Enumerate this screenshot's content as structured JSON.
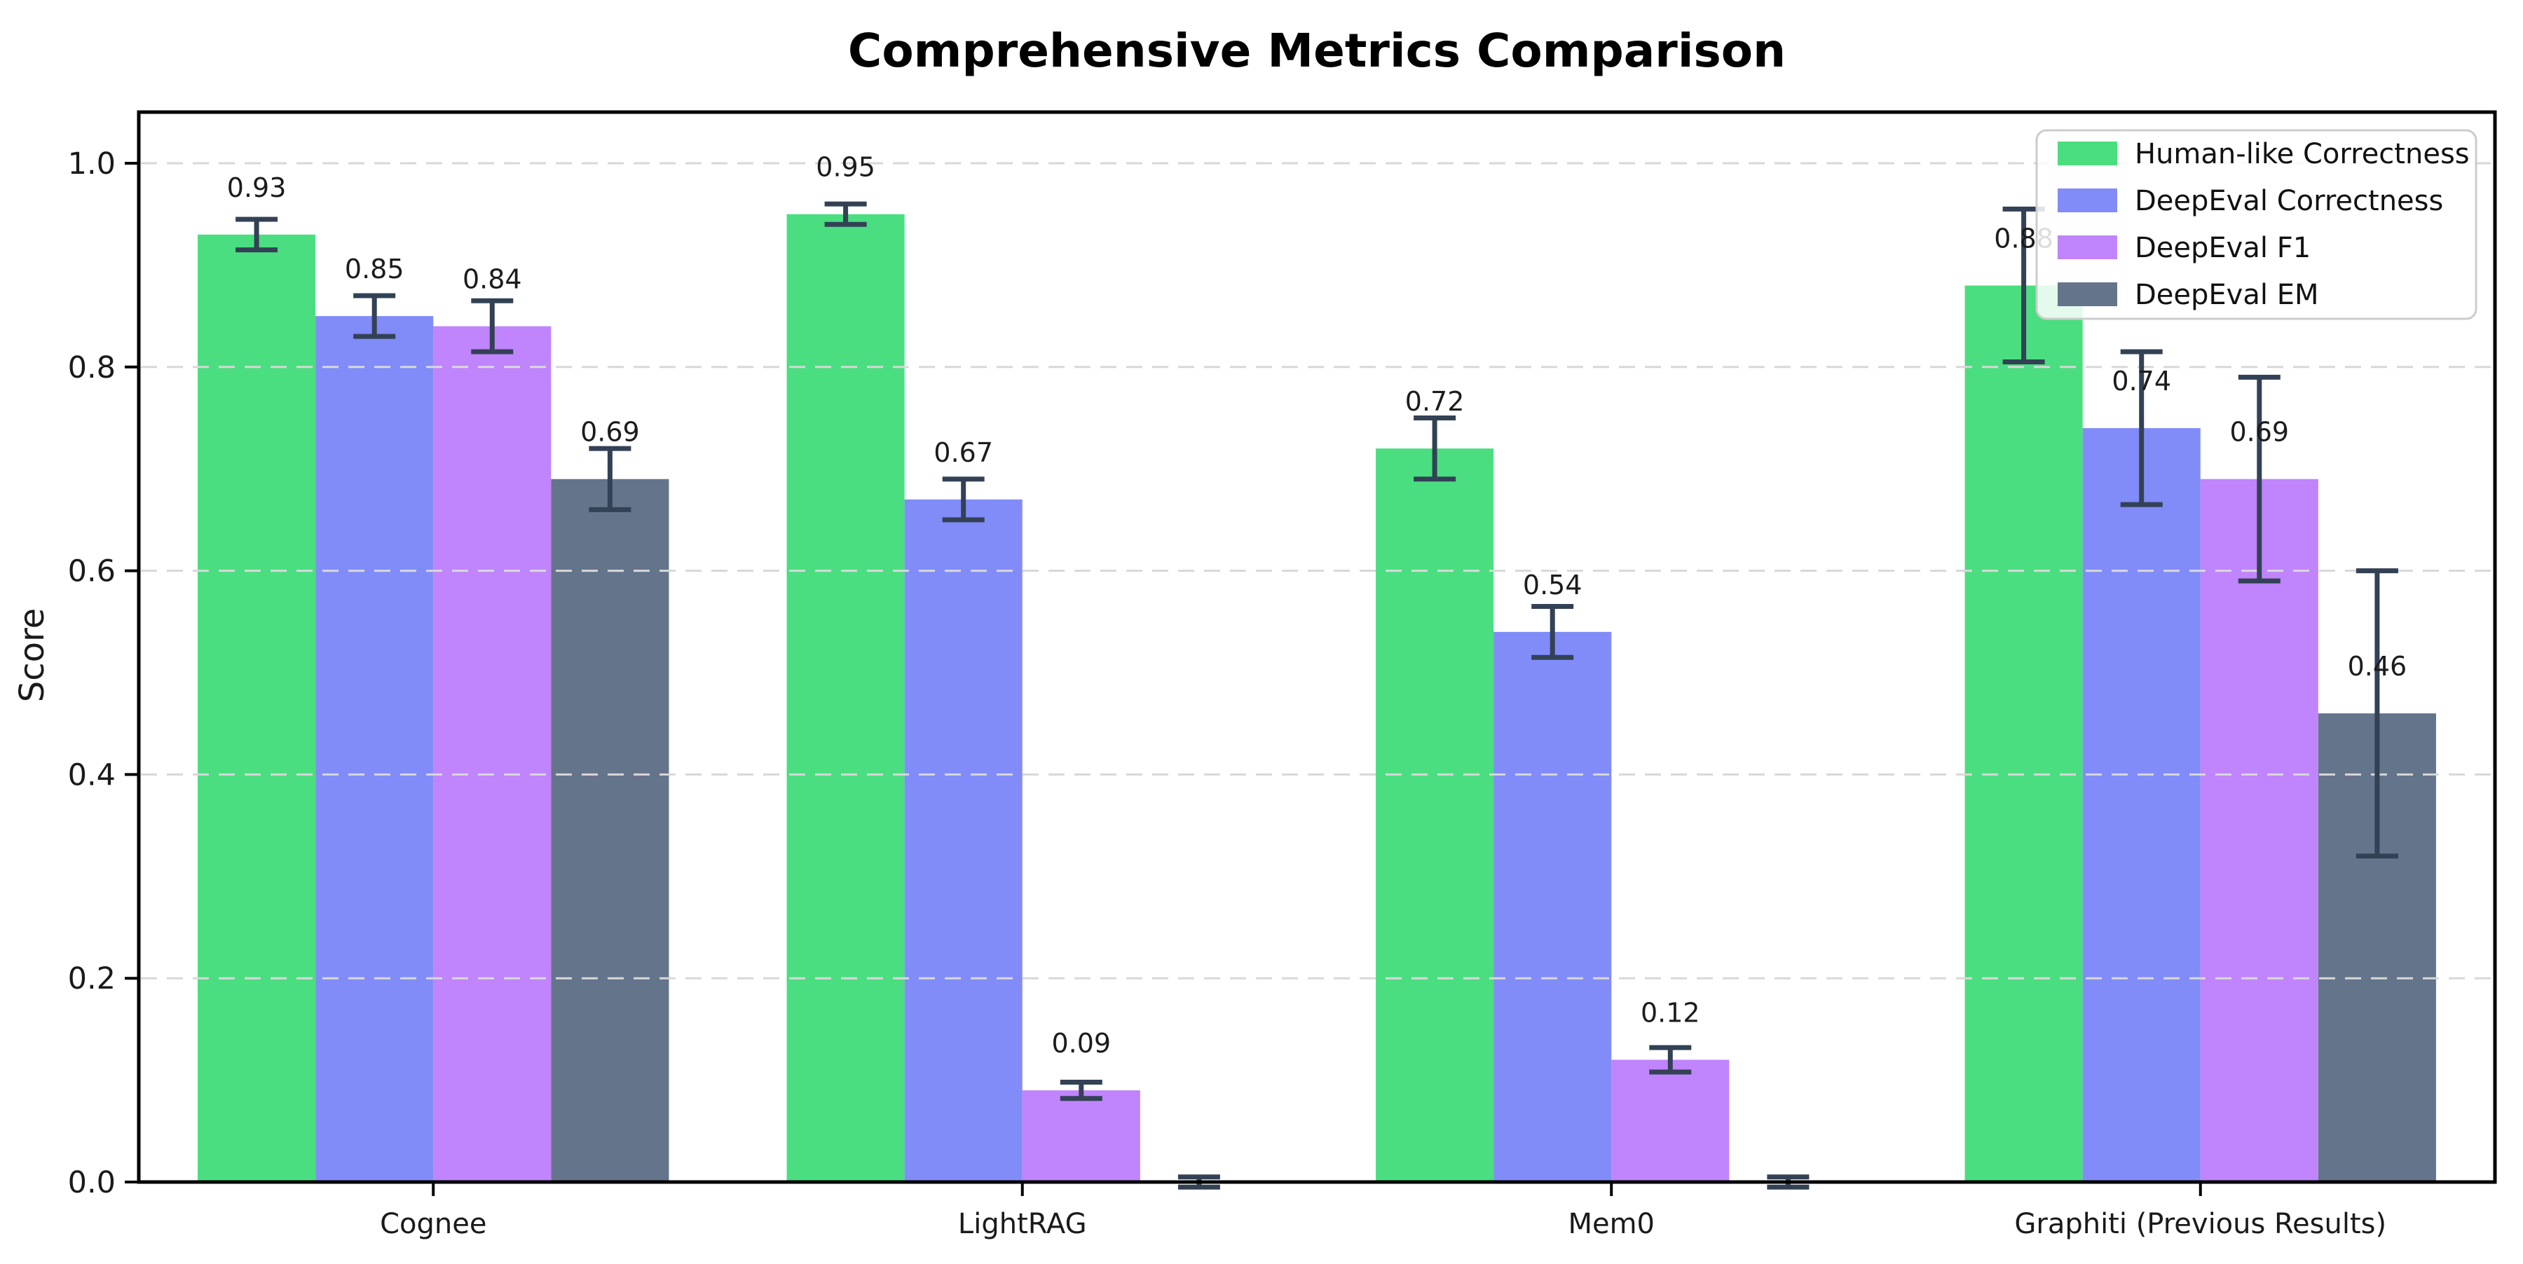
{
  "chart_data": {
    "type": "bar",
    "title": "Comprehensive Metrics Comparison",
    "xlabel": "",
    "ylabel": "Score",
    "categories": [
      "Cognee",
      "LightRAG",
      "Mem0",
      "Graphiti (Previous Results)"
    ],
    "series": [
      {
        "name": "Human-like Correctness",
        "color": "#4ade80",
        "values": [
          0.93,
          0.95,
          0.72,
          0.88
        ],
        "errors": [
          0.015,
          0.01,
          0.03,
          0.075
        ],
        "labels": [
          "0.93",
          "0.95",
          "0.72",
          "0.88"
        ]
      },
      {
        "name": "DeepEval Correctness",
        "color": "#818cf8",
        "values": [
          0.85,
          0.67,
          0.54,
          0.74
        ],
        "errors": [
          0.02,
          0.02,
          0.025,
          0.075
        ],
        "labels": [
          "0.85",
          "0.67",
          "0.54",
          "0.74"
        ]
      },
      {
        "name": "DeepEval F1",
        "color": "#c084fc",
        "values": [
          0.84,
          0.09,
          0.12,
          0.69
        ],
        "errors": [
          0.025,
          0.008,
          0.012,
          0.1
        ],
        "labels": [
          "0.84",
          "0.09",
          "0.12",
          "0.69"
        ]
      },
      {
        "name": "DeepEval EM",
        "color": "#64748b",
        "values": [
          0.69,
          0.0,
          0.0,
          0.46
        ],
        "errors": [
          0.03,
          0.005,
          0.005,
          0.14
        ],
        "labels": [
          "0.69",
          "",
          "",
          "0.46"
        ]
      }
    ],
    "yticks": [
      0.0,
      0.2,
      0.4,
      0.6,
      0.8,
      1.0
    ],
    "ytick_labels": [
      "0.0",
      "0.2",
      "0.4",
      "0.6",
      "0.8",
      "1.0"
    ],
    "ylim": [
      0,
      1.05
    ],
    "grid": "horizontal-dashed",
    "legend_position": "top-right",
    "style": {
      "errorbar_color": "#334155",
      "grid_color": "#d8d8d8",
      "spine_color": "#000000",
      "legend_border_color": "#cccccc",
      "legend_fill": "#ffffff"
    }
  }
}
